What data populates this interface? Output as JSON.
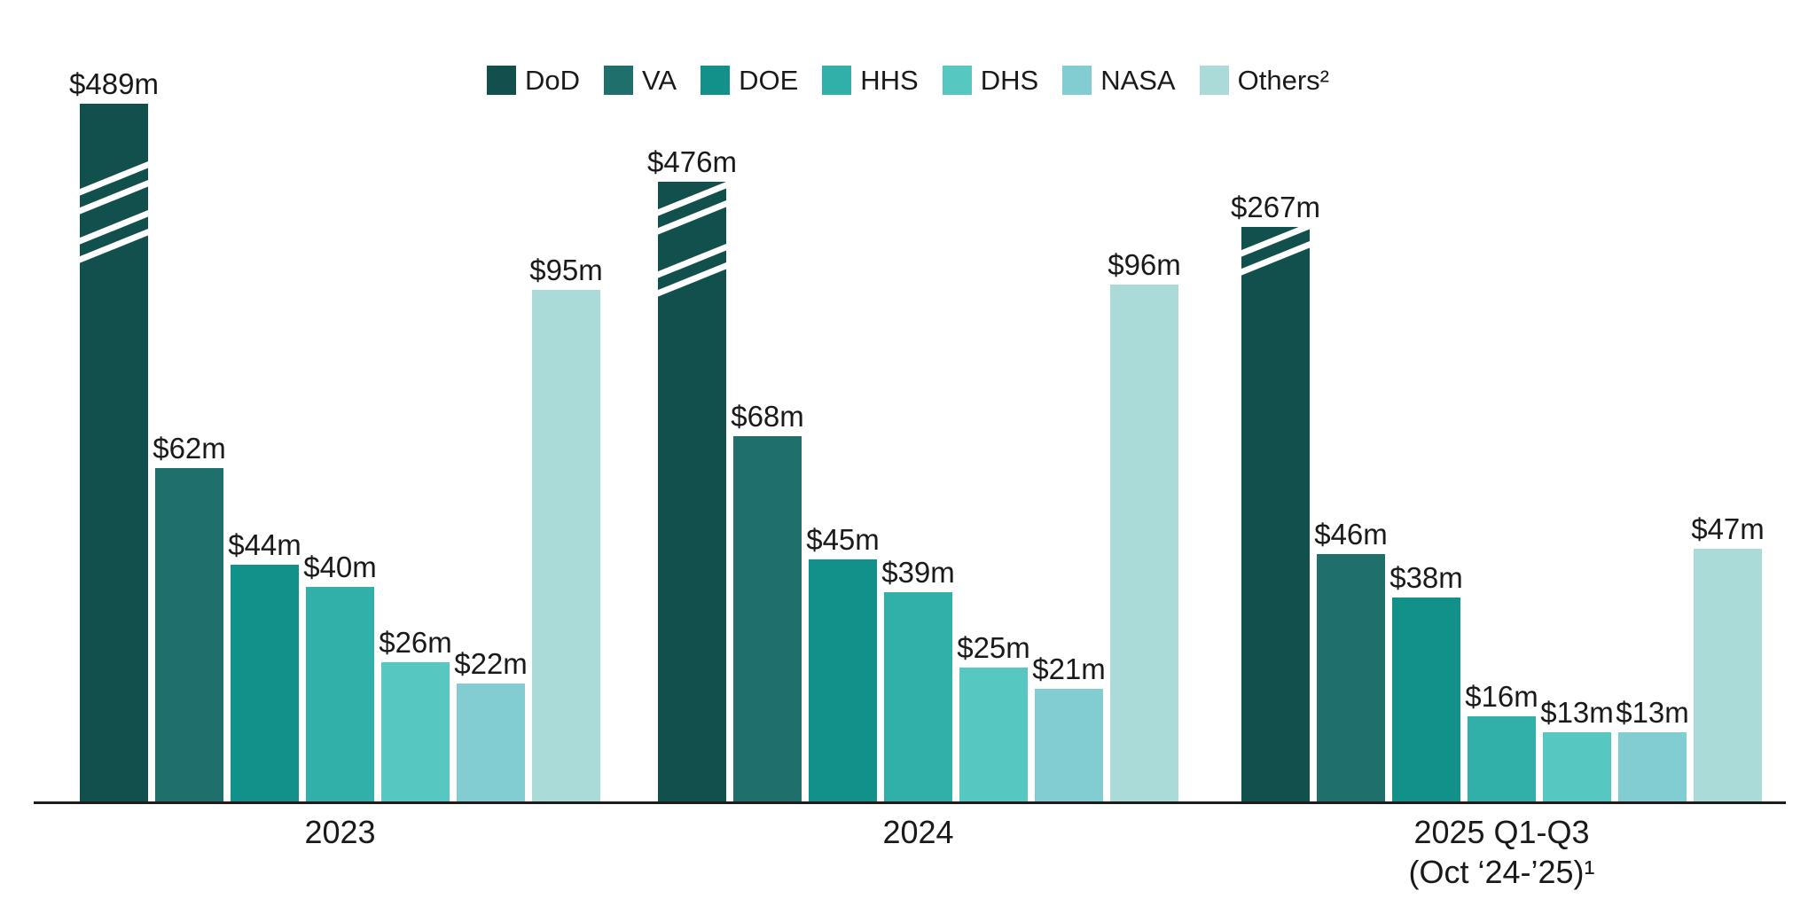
{
  "chart_data": {
    "type": "bar",
    "title": "",
    "unit": "USD millions",
    "legend_position": "top",
    "grid": false,
    "categories": [
      "2023",
      "2024",
      "2025 Q1-Q3 (Oct ‘24-’25)¹"
    ],
    "category_label_lines": [
      [
        "2023"
      ],
      [
        "2024"
      ],
      [
        "2025 Q1-Q3",
        "(Oct ‘24-’25)¹"
      ]
    ],
    "series": [
      {
        "name": "DoD",
        "color": "#12504d",
        "values": [
          489,
          476,
          267
        ],
        "labels": [
          "$489m",
          "$476m",
          "$267m"
        ],
        "truncated": true
      },
      {
        "name": "VA",
        "color": "#1f706d",
        "values": [
          62,
          68,
          46
        ],
        "labels": [
          "$62m",
          "$68m",
          "$46m"
        ],
        "truncated": false
      },
      {
        "name": "DOE",
        "color": "#12908a",
        "values": [
          44,
          45,
          38
        ],
        "labels": [
          "$44m",
          "$45m",
          "$38m"
        ],
        "truncated": false
      },
      {
        "name": "HHS",
        "color": "#30b0a9",
        "values": [
          40,
          39,
          16
        ],
        "labels": [
          "$40m",
          "$39m",
          "$16m"
        ],
        "truncated": false
      },
      {
        "name": "DHS",
        "color": "#57c7c1",
        "values": [
          26,
          25,
          13
        ],
        "labels": [
          "$26m",
          "$25m",
          "$13m"
        ],
        "truncated": false
      },
      {
        "name": "NASA",
        "color": "#82cdd2",
        "values": [
          22,
          21,
          13
        ],
        "labels": [
          "$22m",
          "$21m",
          "$13m"
        ],
        "truncated": false
      },
      {
        "name": "Others²",
        "color": "#abdbd8",
        "values": [
          95,
          96,
          47
        ],
        "labels": [
          "$95m",
          "$96m",
          "$47m"
        ],
        "truncated": false
      }
    ],
    "axis_break_note": "DoD bars are truncated and drawn with white break slashes"
  },
  "colors": {
    "axis": "#1d1d1b",
    "text": "#1a1a1a",
    "background": "#ffffff"
  }
}
